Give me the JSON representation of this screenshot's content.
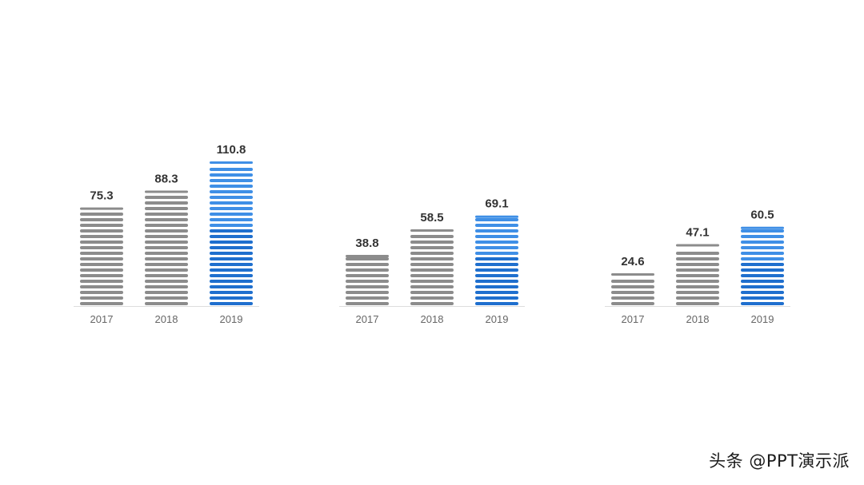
{
  "colors": {
    "past": "#8c8c8c",
    "highlight": "#1f6fce",
    "highlight_light": "#3f8fe6",
    "value_label": "#333333",
    "tick_label": "#666666",
    "baseline": "#dddddd"
  },
  "chart_data": [
    {
      "type": "bar",
      "categories": [
        "2017",
        "2018",
        "2019"
      ],
      "values": [
        75.3,
        88.3,
        110.8
      ],
      "value_labels": [
        "75.3",
        "88.3",
        "110.8"
      ],
      "highlight_index": 2
    },
    {
      "type": "bar",
      "categories": [
        "2017",
        "2018",
        "2019"
      ],
      "values": [
        38.8,
        58.5,
        69.1
      ],
      "value_labels": [
        "38.8",
        "58.5",
        "69.1"
      ],
      "highlight_index": 2
    },
    {
      "type": "bar",
      "categories": [
        "2017",
        "2018",
        "2019"
      ],
      "values": [
        24.6,
        47.1,
        60.5
      ],
      "value_labels": [
        "24.6",
        "47.1",
        "60.5"
      ],
      "highlight_index": 2
    }
  ],
  "watermark": "头条 @PPT演示派"
}
